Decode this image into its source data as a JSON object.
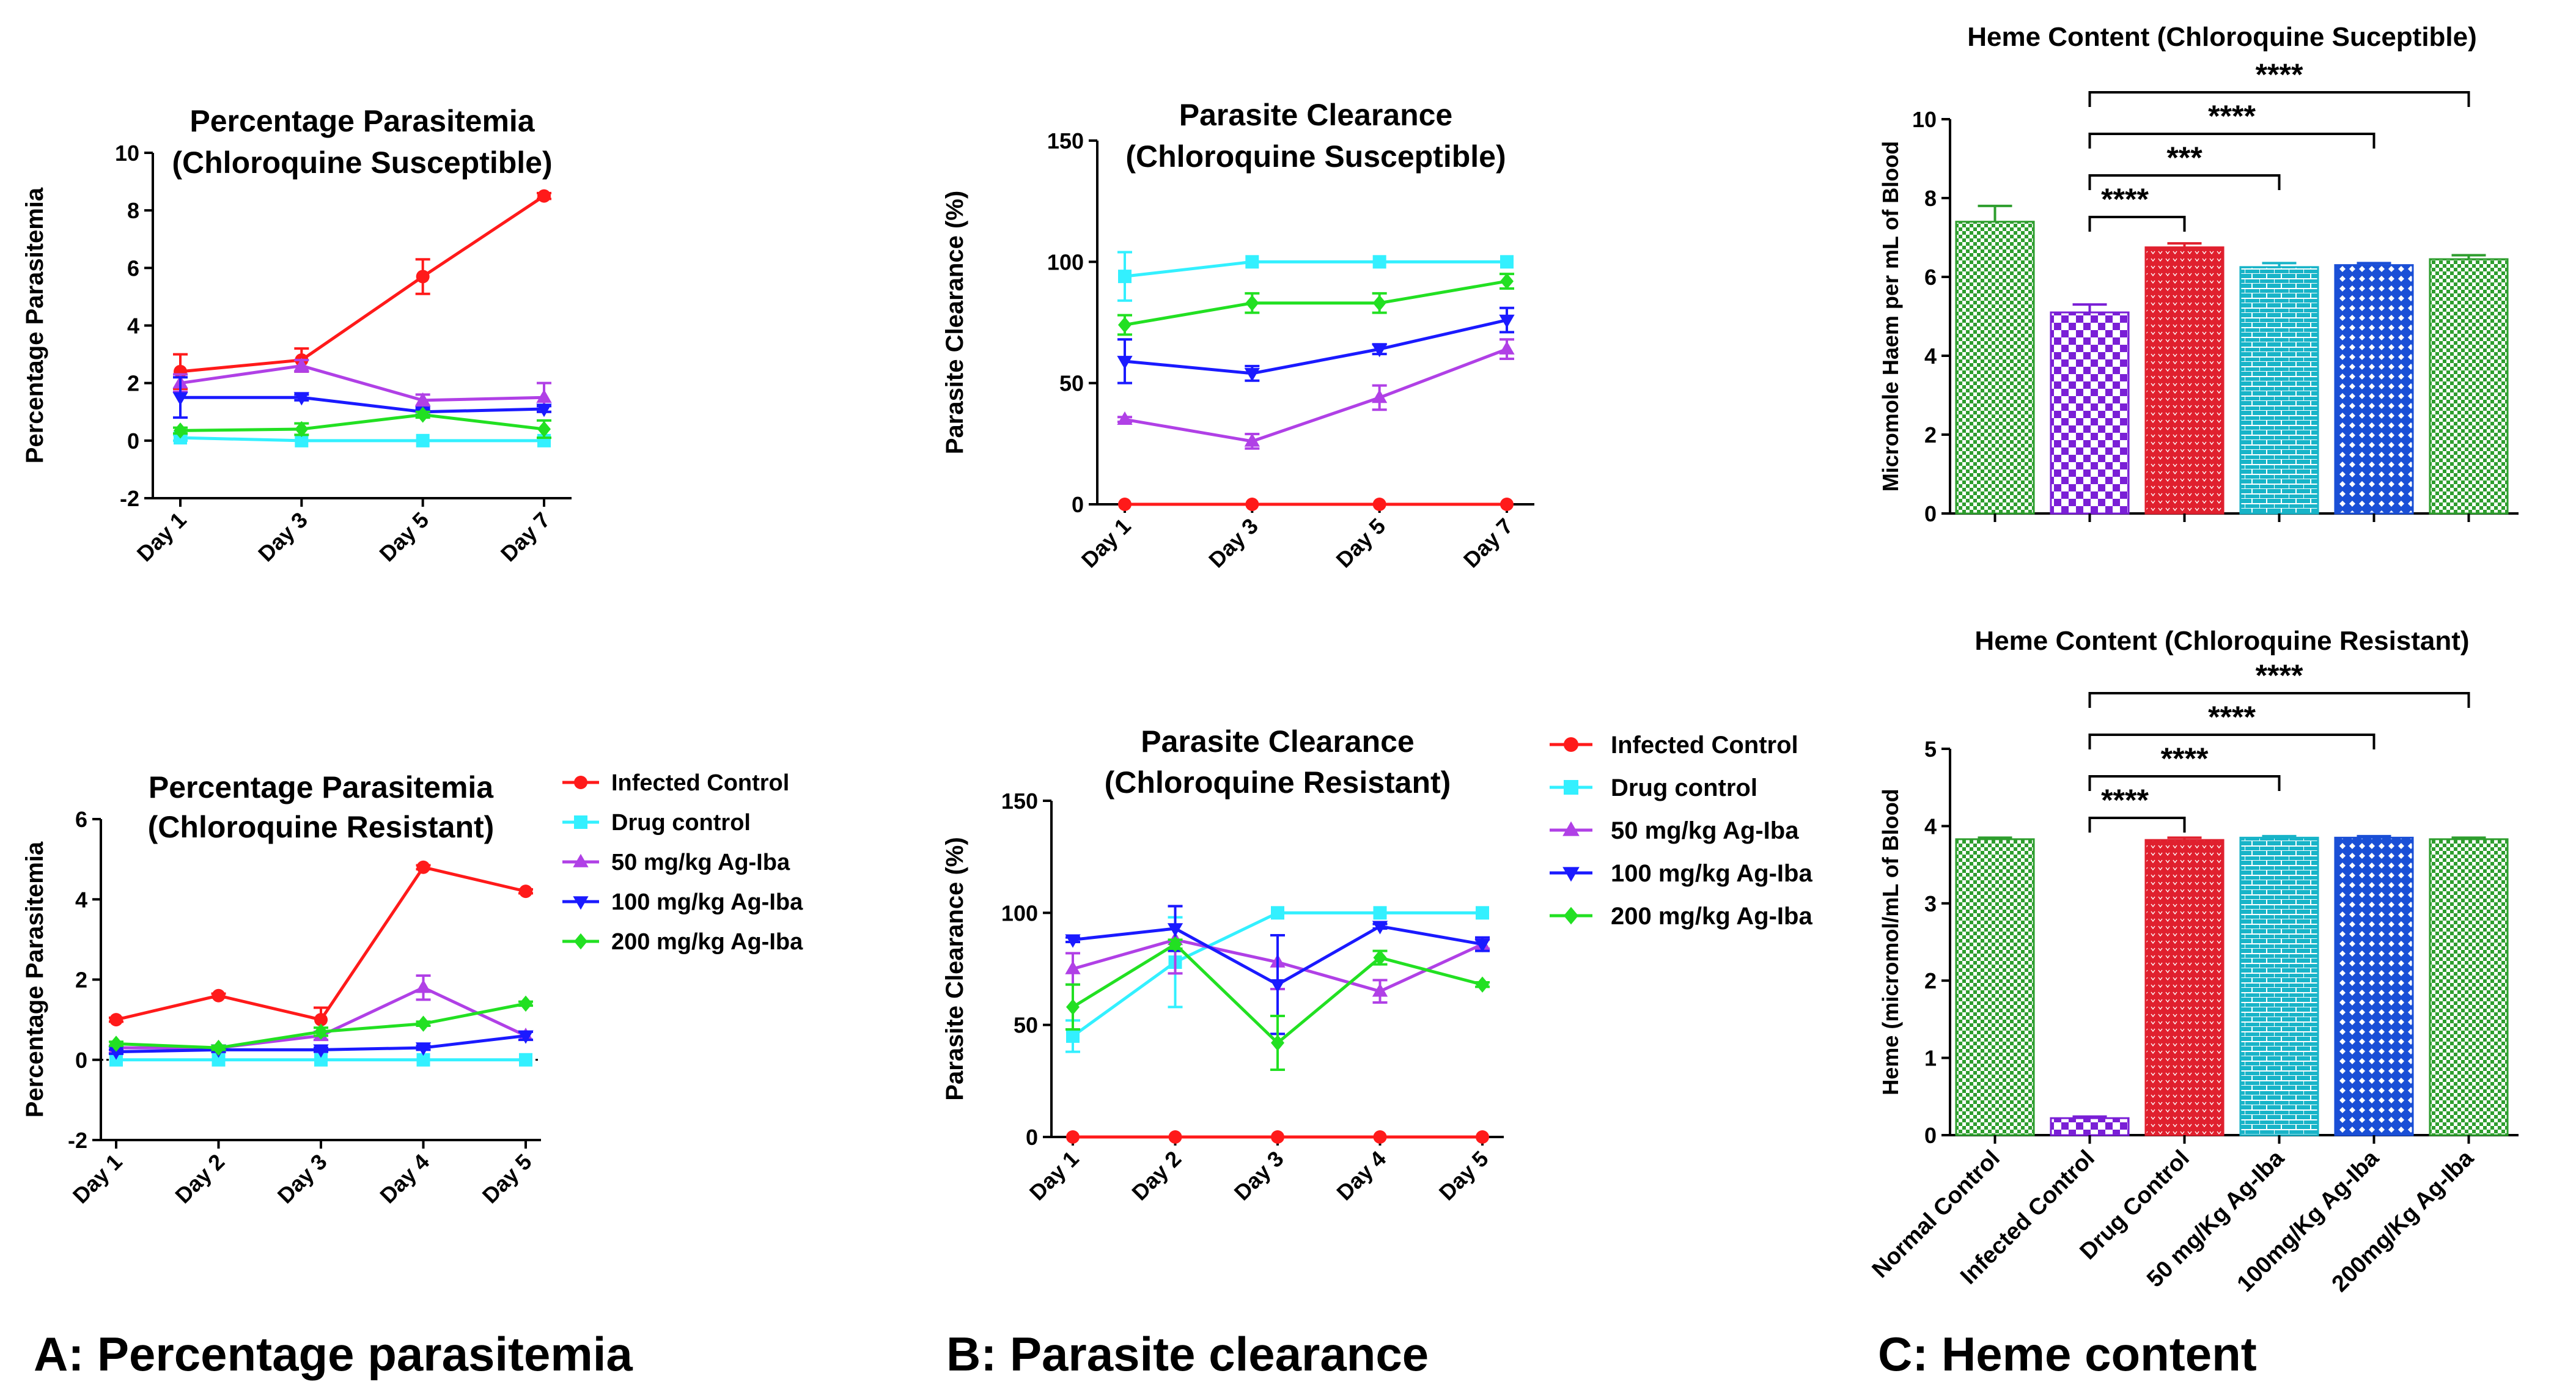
{
  "panel_labels": {
    "a": "A: Percentage parasitemia",
    "b": "B: Parasite clearance",
    "c": "C: Heme content"
  },
  "legend": [
    {
      "name": "Infected Control",
      "color": "#ff1a1a",
      "marker": "circle"
    },
    {
      "name": "Drug control",
      "color": "#33f0ff",
      "marker": "square"
    },
    {
      "name": "50 mg/kg Ag-Iba",
      "color": "#b040e6",
      "marker": "triangle-up"
    },
    {
      "name": "100 mg/kg Ag-Iba",
      "color": "#1a1aff",
      "marker": "triangle-down"
    },
    {
      "name": "200 mg/kg Ag-Iba",
      "color": "#22e022",
      "marker": "diamond"
    }
  ],
  "chart_data": [
    {
      "id": "a1",
      "type": "line",
      "title": [
        "Percentage Parasitemia",
        "(Chloroquine Susceptible)"
      ],
      "xlabel": "",
      "ylabel": "Percentage Parasitemia",
      "categories": [
        "Day 1",
        "Day 3",
        "Day 5",
        "Day 7"
      ],
      "ylim": [
        -2,
        10
      ],
      "yticks": [
        -2,
        0,
        2,
        4,
        6,
        8,
        10
      ],
      "series": [
        {
          "name": "Infected Control",
          "values": [
            2.4,
            2.8,
            5.7,
            8.5
          ],
          "errors": [
            0.6,
            0.4,
            0.6,
            0.1
          ]
        },
        {
          "name": "Drug control",
          "values": [
            0.1,
            0.0,
            0.0,
            0.0
          ],
          "errors": [
            0.1,
            0.0,
            0.0,
            0.0
          ]
        },
        {
          "name": "50 mg/kg Ag-Iba",
          "values": [
            2.0,
            2.6,
            1.4,
            1.5
          ],
          "errors": [
            0.3,
            0.2,
            0.2,
            0.5
          ]
        },
        {
          "name": "100 mg/kg Ag-Iba",
          "values": [
            1.5,
            1.5,
            1.0,
            1.1
          ],
          "errors": [
            0.7,
            0.1,
            0.1,
            0.1
          ]
        },
        {
          "name": "200 mg/kg Ag-Iba",
          "values": [
            0.35,
            0.4,
            0.9,
            0.4
          ],
          "errors": [
            0.1,
            0.2,
            0.1,
            0.3
          ]
        }
      ]
    },
    {
      "id": "a2",
      "type": "line",
      "title": [
        "Percentage Parasitemia",
        "(Chloroquine Resistant)"
      ],
      "xlabel": "",
      "ylabel": "Percentage Parasitemia",
      "categories": [
        "Day 1",
        "Day 2",
        "Day 3",
        "Day 4",
        "Day 5"
      ],
      "ylim": [
        -2,
        6
      ],
      "yticks": [
        -2,
        0,
        2,
        4,
        6
      ],
      "zero_line": true,
      "series": [
        {
          "name": "Infected Control",
          "values": [
            1.0,
            1.6,
            1.0,
            4.8,
            4.2
          ],
          "errors": [
            0.05,
            0.05,
            0.3,
            0.05,
            0.05
          ]
        },
        {
          "name": "Drug control",
          "values": [
            0.0,
            0.0,
            0.0,
            0.0,
            0.0
          ],
          "errors": [
            0,
            0,
            0,
            0,
            0
          ]
        },
        {
          "name": "50 mg/kg Ag-Iba",
          "values": [
            0.3,
            0.3,
            0.6,
            1.8,
            0.6
          ],
          "errors": [
            0.05,
            0.05,
            0.1,
            0.3,
            0.1
          ]
        },
        {
          "name": "100 mg/kg Ag-Iba",
          "values": [
            0.2,
            0.25,
            0.25,
            0.3,
            0.6
          ],
          "errors": [
            0.05,
            0.05,
            0.05,
            0.05,
            0.1
          ]
        },
        {
          "name": "200 mg/kg Ag-Iba",
          "values": [
            0.4,
            0.3,
            0.7,
            0.9,
            1.4
          ],
          "errors": [
            0.05,
            0.05,
            0.1,
            0.05,
            0.05
          ]
        }
      ]
    },
    {
      "id": "b1",
      "type": "line",
      "title": [
        "Parasite Clearance",
        "(Chloroquine Susceptible)"
      ],
      "xlabel": "",
      "ylabel": "Parasite Clearance (%)",
      "categories": [
        "Day 1",
        "Day 3",
        "Day 5",
        "Day 7"
      ],
      "ylim": [
        0,
        150
      ],
      "yticks": [
        0,
        50,
        100,
        150
      ],
      "series": [
        {
          "name": "Infected Control",
          "values": [
            0,
            0,
            0,
            0
          ],
          "errors": [
            0,
            0,
            0,
            0
          ]
        },
        {
          "name": "Drug control",
          "values": [
            94,
            100,
            100,
            100
          ],
          "errors": [
            10,
            0,
            0,
            0
          ]
        },
        {
          "name": "50 mg/kg Ag-Iba",
          "values": [
            35,
            26,
            44,
            64
          ],
          "errors": [
            1,
            3,
            5,
            4
          ]
        },
        {
          "name": "100 mg/kg Ag-Iba",
          "values": [
            59,
            54,
            64,
            76
          ],
          "errors": [
            9,
            3,
            2,
            5
          ]
        },
        {
          "name": "200 mg/kg Ag-Iba",
          "values": [
            74,
            83,
            83,
            92
          ],
          "errors": [
            4,
            4,
            4,
            3
          ]
        }
      ]
    },
    {
      "id": "b2",
      "type": "line",
      "title": [
        "Parasite Clearance",
        "(Chloroquine Resistant)"
      ],
      "xlabel": "",
      "ylabel": "Parasite Clearance (%)",
      "categories": [
        "Day 1",
        "Day 2",
        "Day 3",
        "Day 4",
        "Day 5"
      ],
      "ylim": [
        0,
        150
      ],
      "yticks": [
        0,
        50,
        100,
        150
      ],
      "series": [
        {
          "name": "Infected Control",
          "values": [
            0,
            0,
            0,
            0,
            0
          ],
          "errors": [
            0,
            0,
            0,
            0,
            0
          ]
        },
        {
          "name": "Drug control",
          "values": [
            45,
            78,
            100,
            100,
            100
          ],
          "errors": [
            7,
            20,
            0,
            0,
            0
          ]
        },
        {
          "name": "50 mg/kg Ag-Iba",
          "values": [
            75,
            88,
            78,
            65,
            86
          ],
          "errors": [
            7,
            15,
            12,
            5,
            2
          ]
        },
        {
          "name": "100 mg/kg Ag-Iba",
          "values": [
            88,
            93,
            68,
            94,
            86
          ],
          "errors": [
            1,
            10,
            22,
            1,
            3
          ]
        },
        {
          "name": "200 mg/kg Ag-Iba",
          "values": [
            58,
            86,
            42,
            80,
            68
          ],
          "errors": [
            10,
            2,
            12,
            3,
            1
          ]
        }
      ]
    },
    {
      "id": "c1",
      "type": "bar",
      "title": [
        "Heme Content (Chloroquine Suceptible)"
      ],
      "xlabel": "",
      "ylabel": "Micromole Haem per mL of Blood",
      "categories": [
        "Normal Control",
        "Infected  Control",
        "Drug  Control",
        "50 mg/Kg Ag-Iba",
        "100mg/Kg Ag-Iba",
        "200mg/Kg Ag-Iba"
      ],
      "show_category_labels": false,
      "values": [
        7.4,
        5.1,
        6.75,
        6.25,
        6.3,
        6.45
      ],
      "errors": [
        0.4,
        0.2,
        0.1,
        0.1,
        0.05,
        0.1
      ],
      "ylim": [
        0,
        10
      ],
      "yticks": [
        0,
        2,
        4,
        6,
        8,
        10
      ],
      "significance": [
        {
          "from": 1,
          "to": 2,
          "label": "****"
        },
        {
          "from": 1,
          "to": 3,
          "label": "***"
        },
        {
          "from": 1,
          "to": 4,
          "label": "****"
        },
        {
          "from": 1,
          "to": 5,
          "label": "****"
        }
      ]
    },
    {
      "id": "c2",
      "type": "bar",
      "title": [
        "Heme Content (Chloroquine Resistant)"
      ],
      "xlabel": "",
      "ylabel": "Heme (micromol/mL of Blood",
      "categories": [
        "Normal Control",
        "Infected  Control",
        "Drug  Control",
        "50 mg/Kg Ag-Iba",
        "100mg/Kg Ag-Iba",
        "200mg/Kg Ag-Iba"
      ],
      "show_category_labels": true,
      "values": [
        3.83,
        0.22,
        3.82,
        3.85,
        3.85,
        3.83
      ],
      "errors": [
        0.02,
        0.02,
        0.03,
        0.02,
        0.02,
        0.02
      ],
      "ylim": [
        0,
        5
      ],
      "yticks": [
        0,
        1,
        2,
        3,
        4,
        5
      ],
      "significance": [
        {
          "from": 1,
          "to": 2,
          "label": "****"
        },
        {
          "from": 1,
          "to": 3,
          "label": "****"
        },
        {
          "from": 1,
          "to": 4,
          "label": "****"
        },
        {
          "from": 1,
          "to": 5,
          "label": "****"
        }
      ]
    }
  ],
  "bar_styles": [
    {
      "color": "#2e9e2e",
      "pattern": "checker"
    },
    {
      "color": "#7a1fd6",
      "pattern": "bigchecker"
    },
    {
      "color": "#e0202e",
      "pattern": "dots"
    },
    {
      "color": "#18b4c8",
      "pattern": "brick"
    },
    {
      "color": "#1a4fd6",
      "pattern": "diamond"
    },
    {
      "color": "#2e9e2e",
      "pattern": "checker"
    }
  ]
}
